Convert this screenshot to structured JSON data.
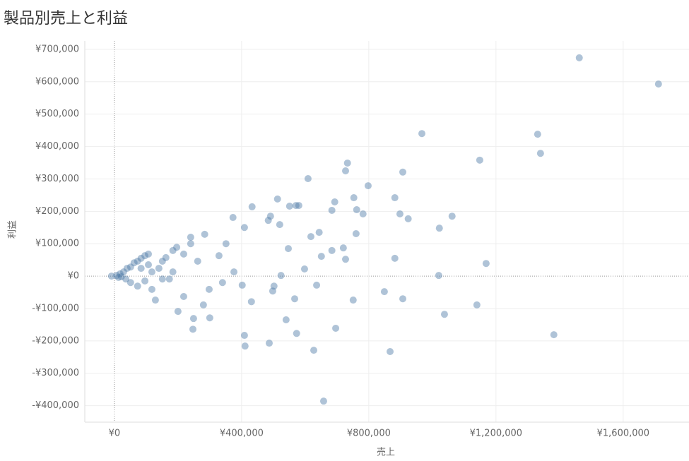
{
  "chart_data": {
    "type": "scatter",
    "title": "製品別売上と利益",
    "x_label": "売上",
    "y_label": "利益",
    "color": "#4e79a7",
    "xlim": [
      -93000,
      1807000
    ],
    "ylim": [
      -451000,
      726000
    ],
    "xticks": [
      {
        "value": 0,
        "label": "¥0"
      },
      {
        "value": 400000,
        "label": "¥400,000"
      },
      {
        "value": 800000,
        "label": "¥800,000"
      },
      {
        "value": 1200000,
        "label": "¥1,200,000"
      },
      {
        "value": 1600000,
        "label": "¥1,600,000"
      }
    ],
    "yticks": [
      {
        "value": -400000,
        "label": "-¥400,000"
      },
      {
        "value": -300000,
        "label": "-¥300,000"
      },
      {
        "value": -200000,
        "label": "-¥200,000"
      },
      {
        "value": -100000,
        "label": "-¥100,000"
      },
      {
        "value": 0,
        "label": "¥0"
      },
      {
        "value": 100000,
        "label": "¥100,000"
      },
      {
        "value": 200000,
        "label": "¥200,000"
      },
      {
        "value": 300000,
        "label": "¥300,000"
      },
      {
        "value": 400000,
        "label": "¥400,000"
      },
      {
        "value": 500000,
        "label": "¥500,000"
      },
      {
        "value": 600000,
        "label": "¥600,000"
      },
      {
        "value": 700000,
        "label": "¥700,000"
      }
    ],
    "grid": true,
    "x": [
      1462000,
      1711000,
      1331000,
      1340000,
      967000,
      1149000,
      609000,
      733000,
      727000,
      907000,
      798000,
      882000,
      753000,
      513000,
      571000,
      580000,
      551000,
      433000,
      693000,
      762000,
      782000,
      684000,
      898000,
      924000,
      1062000,
      1022000,
      1169000,
      1020000,
      882000,
      1038000,
      1140000,
      1382000,
      907000,
      849000,
      867000,
      658000,
      627000,
      696000,
      573000,
      487000,
      409000,
      411000,
      540000,
      751000,
      636000,
      567000,
      249000,
      247000,
      300000,
      200000,
      280000,
      431000,
      727000,
      720000,
      684000,
      651000,
      598000,
      644000,
      760000,
      618000,
      491000,
      484000,
      520000,
      373000,
      409000,
      547000,
      524000,
      502000,
      498000,
      402000,
      376000,
      329000,
      284000,
      240000,
      351000,
      298000,
      340000,
      173000,
      151000,
      107000,
      84000,
      118000,
      129000,
      218000,
      18000,
      29000,
      40000,
      51000,
      62000,
      73000,
      84000,
      96000,
      107000,
      36000,
      51000,
      73000,
      96000,
      118000,
      140000,
      162000,
      184000,
      196000,
      218000,
      240000,
      262000,
      184000,
      151000,
      7000,
      13000,
      22000,
      -9000
    ],
    "values": [
      674000,
      593000,
      438000,
      379000,
      440000,
      358000,
      301000,
      349000,
      325000,
      321000,
      279000,
      242000,
      242000,
      238000,
      218000,
      218000,
      216000,
      214000,
      229000,
      205000,
      192000,
      203000,
      192000,
      177000,
      185000,
      148000,
      39000,
      2000,
      55000,
      -118000,
      -89000,
      -181000,
      -70000,
      -48000,
      -233000,
      -386000,
      -229000,
      -161000,
      -177000,
      -207000,
      -183000,
      -216000,
      -135000,
      -74000,
      -28000,
      -70000,
      -131000,
      -164000,
      -129000,
      -109000,
      -89000,
      -79000,
      52000,
      87000,
      79000,
      61000,
      22000,
      135000,
      131000,
      122000,
      185000,
      172000,
      159000,
      181000,
      150000,
      85000,
      2000,
      -31000,
      -46000,
      -28000,
      13000,
      63000,
      129000,
      120000,
      100000,
      -41000,
      -20000,
      -9000,
      46000,
      68000,
      24000,
      -41000,
      -74000,
      -63000,
      7000,
      13000,
      24000,
      28000,
      41000,
      46000,
      55000,
      63000,
      35000,
      -9000,
      -20000,
      -31000,
      -15000,
      13000,
      24000,
      57000,
      79000,
      89000,
      68000,
      100000,
      46000,
      13000,
      -9000,
      2000,
      -4000,
      -2000,
      0
    ]
  }
}
